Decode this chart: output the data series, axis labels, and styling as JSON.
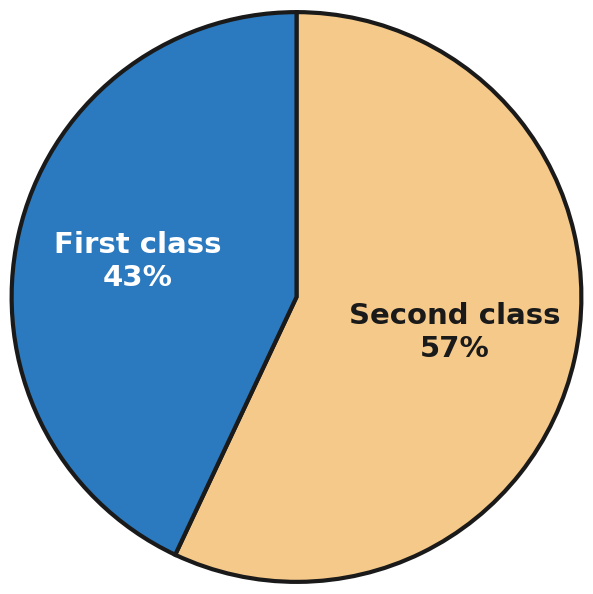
{
  "slices": [
    {
      "label": "Second class",
      "percent": 57,
      "color": "#F5C98A",
      "text_color": "#1a1a1a"
    },
    {
      "label": "First class",
      "percent": 43,
      "color": "#2B7ABF",
      "text_color": "#ffffff"
    }
  ],
  "startangle": 90,
  "background_color": "#ffffff",
  "edge_color": "#1a1a1a",
  "edge_linewidth": 3.0,
  "label_fontsize": 21,
  "label_fontweight": "bold",
  "figsize": [
    5.93,
    5.94
  ],
  "dpi": 100
}
